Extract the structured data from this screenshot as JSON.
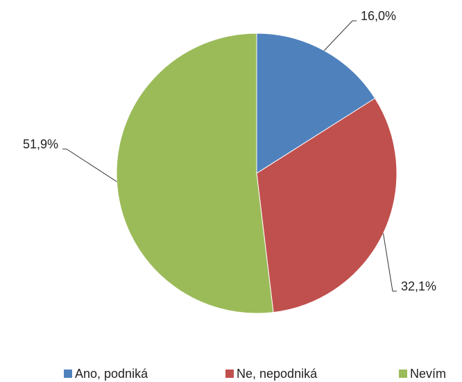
{
  "chart_data": {
    "type": "pie",
    "categories": [
      "Ano, podniká",
      "Ne, nepodniká",
      "Nevím"
    ],
    "values": [
      16.0,
      32.1,
      51.9
    ],
    "value_labels": [
      "16,0%",
      "32,1%",
      "51,9%"
    ],
    "colors": [
      "#4f81bd",
      "#c0504d",
      "#9bbb59"
    ],
    "legend": "bottom"
  }
}
